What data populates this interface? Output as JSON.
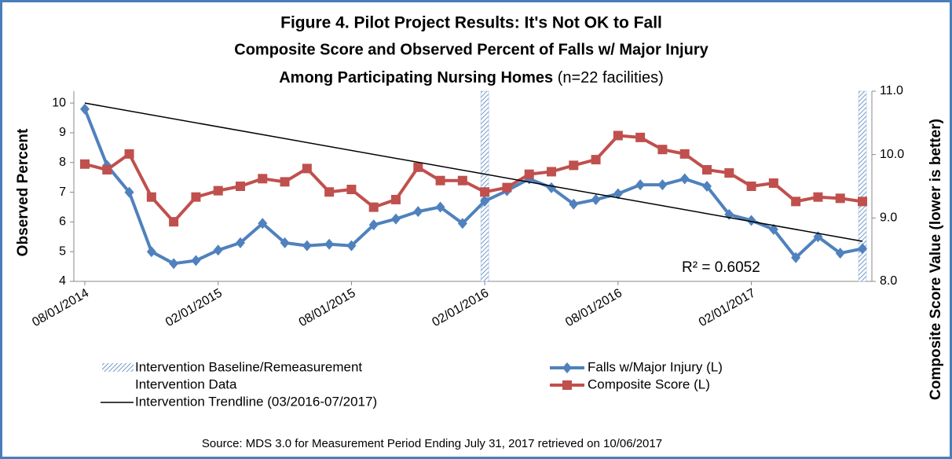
{
  "chart_data": {
    "type": "line",
    "title": "Figure 4.  Pilot Project Results: It's Not OK to Fall",
    "subtitle": "Composite Score and Observed Percent of Falls w/ Major Injury",
    "subtitle2": "Among Participating Nursing Homes",
    "subtitle2_note": "(n=22 facilities)",
    "y_label": "Observed Percent",
    "y2_label": "Composite Score Value (lower is better)",
    "source": "Source: MDS 3.0 for Measurement Period Ending  July 31, 2017 retrieved on 10/06/2017",
    "categories": [
      "08/01/2014",
      null,
      null,
      null,
      null,
      null,
      "02/01/2015",
      null,
      null,
      null,
      null,
      null,
      "08/01/2015",
      null,
      null,
      null,
      null,
      null,
      "02/01/2016",
      null,
      null,
      null,
      null,
      null,
      "08/01/2016",
      null,
      null,
      null,
      null,
      null,
      "02/01/2017",
      null,
      null,
      null,
      null,
      null
    ],
    "ylim": [
      4,
      10.4
    ],
    "yticks": [
      4,
      5,
      6,
      7,
      8,
      9,
      10
    ],
    "y2lim": [
      8,
      11
    ],
    "y2ticks": [
      {
        "value": 8,
        "label": "8.0"
      },
      {
        "value": 9,
        "label": "9.0"
      },
      {
        "value": 10,
        "label": "10.0"
      },
      {
        "value": 11,
        "label": "11.0"
      }
    ],
    "intervention": {
      "name": "Intervention Baseline/Remeasurement",
      "color": "#4f81bd",
      "values": [
        null,
        null,
        null,
        null,
        null,
        null,
        null,
        null,
        null,
        null,
        null,
        null,
        null,
        null,
        null,
        null,
        null,
        null,
        10.4,
        null,
        null,
        null,
        null,
        null,
        null,
        null,
        null,
        null,
        null,
        null,
        null,
        null,
        null,
        null,
        null,
        10.4
      ]
    },
    "legend_note": "Intervention Data",
    "trendline": {
      "name": "Intervention Trendline (03/2016-07/2017)",
      "color": "#000000",
      "values": [
        10.0,
        5.35
      ],
      "annotation": "R² = 0.6052"
    },
    "series": [
      {
        "name": "Falls w/Major Injury (L)",
        "color": "#4f81bd",
        "marker": "diamond",
        "values": [
          9.8,
          7.9,
          7.0,
          5.0,
          4.6,
          4.7,
          5.05,
          5.3,
          5.95,
          5.3,
          5.2,
          5.25,
          5.2,
          5.9,
          6.1,
          6.35,
          6.5,
          5.95,
          6.7,
          7.05,
          7.45,
          7.15,
          6.6,
          6.75,
          6.95,
          7.25,
          7.25,
          7.45,
          7.2,
          6.25,
          6.05,
          5.75,
          4.8,
          5.5,
          4.95,
          5.1
        ]
      },
      {
        "name": "Composite Score (L)",
        "color": "#c0504d",
        "marker": "square",
        "axis": "y2",
        "values": [
          9.85,
          9.76,
          10.01,
          9.33,
          8.94,
          9.33,
          9.43,
          9.5,
          9.62,
          9.57,
          9.78,
          9.41,
          9.45,
          9.17,
          9.29,
          9.8,
          9.59,
          9.59,
          9.41,
          9.48,
          9.69,
          9.73,
          9.83,
          9.92,
          10.3,
          10.27,
          10.08,
          10.01,
          9.76,
          9.71,
          9.5,
          9.55,
          9.26,
          9.33,
          9.31,
          9.26
        ]
      }
    ]
  }
}
